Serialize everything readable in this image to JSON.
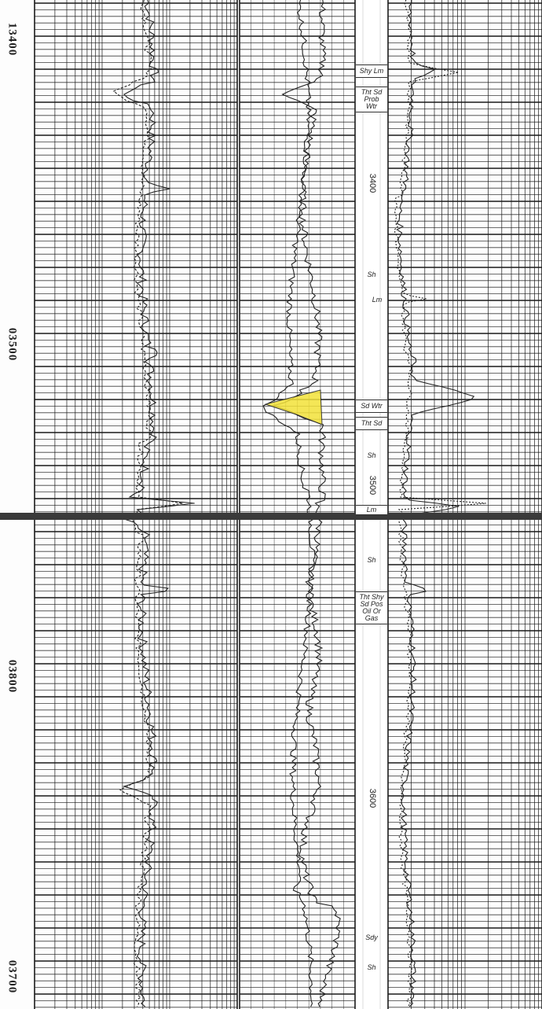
{
  "depth_labels": [
    {
      "id": "d1",
      "text": "13400"
    },
    {
      "id": "d2",
      "text": "03500"
    },
    {
      "id": "d3",
      "text": "03800"
    },
    {
      "id": "d4",
      "text": "03700"
    }
  ],
  "lithology_labels": [
    {
      "id": "l1",
      "lines": [
        "Shy Lm"
      ]
    },
    {
      "id": "l2",
      "lines": [
        "Tht Sd",
        "Prob",
        "Wtr"
      ]
    },
    {
      "id": "l3",
      "lines": [
        "Sh"
      ]
    },
    {
      "id": "l4",
      "lines": [
        "Lm"
      ]
    },
    {
      "id": "l5",
      "lines": [
        "Sd Wtr"
      ]
    },
    {
      "id": "l6",
      "lines": [
        "Tht Sd"
      ]
    },
    {
      "id": "l7",
      "lines": [
        "Sh"
      ]
    },
    {
      "id": "l8",
      "lines": [
        "Lm"
      ]
    },
    {
      "id": "l9",
      "lines": [
        "Sh"
      ]
    },
    {
      "id": "l10",
      "lines": [
        "Tht Shy",
        "Sd Pos",
        "Oil Or",
        "Gas"
      ]
    },
    {
      "id": "l11",
      "lines": [
        "Sdy"
      ]
    },
    {
      "id": "l12",
      "lines": [
        "Sh"
      ]
    }
  ],
  "track_depth_labels": [
    {
      "id": "t1",
      "text": "3400"
    },
    {
      "id": "t2",
      "text": "3500"
    },
    {
      "id": "t3",
      "text": "3600"
    }
  ],
  "colors": {
    "grid": "#1a1a1a",
    "curve": "#222222",
    "highlight": "#f3e23a",
    "splice": "#3a3a3a"
  }
}
